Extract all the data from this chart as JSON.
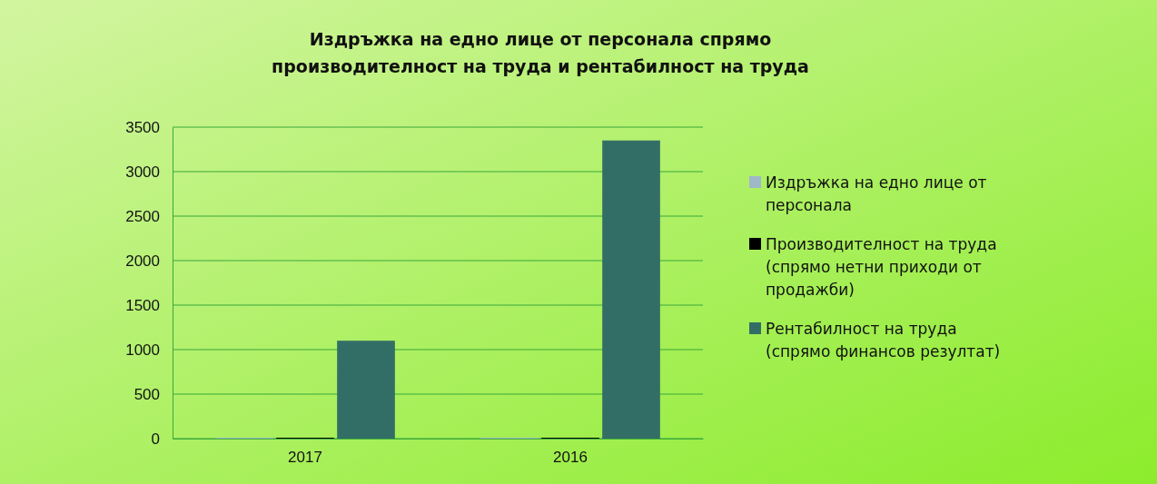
{
  "chart_data": {
    "type": "bar",
    "title": "Издръжка на едно лице от персонала спрямо производителност на труда и рентабилност на труда",
    "categories": [
      "2017",
      "2016"
    ],
    "series": [
      {
        "name": "Издръжка на едно лице от персонала",
        "color": "#9fb8c8",
        "values": [
          10,
          10
        ]
      },
      {
        "name": "Производителност на труда (спрямо нетни приходи от продажби)",
        "color": "#000000",
        "values": [
          10,
          10
        ]
      },
      {
        "name": "Рентабилност на труда (спрямо финансов резултат)",
        "color": "#336e66",
        "values": [
          1100,
          3350
        ]
      }
    ],
    "ylim": [
      0,
      3500
    ],
    "yticks": [
      0,
      500,
      1000,
      1500,
      2000,
      2500,
      3000,
      3500
    ],
    "grid": "y",
    "legend": "right"
  }
}
